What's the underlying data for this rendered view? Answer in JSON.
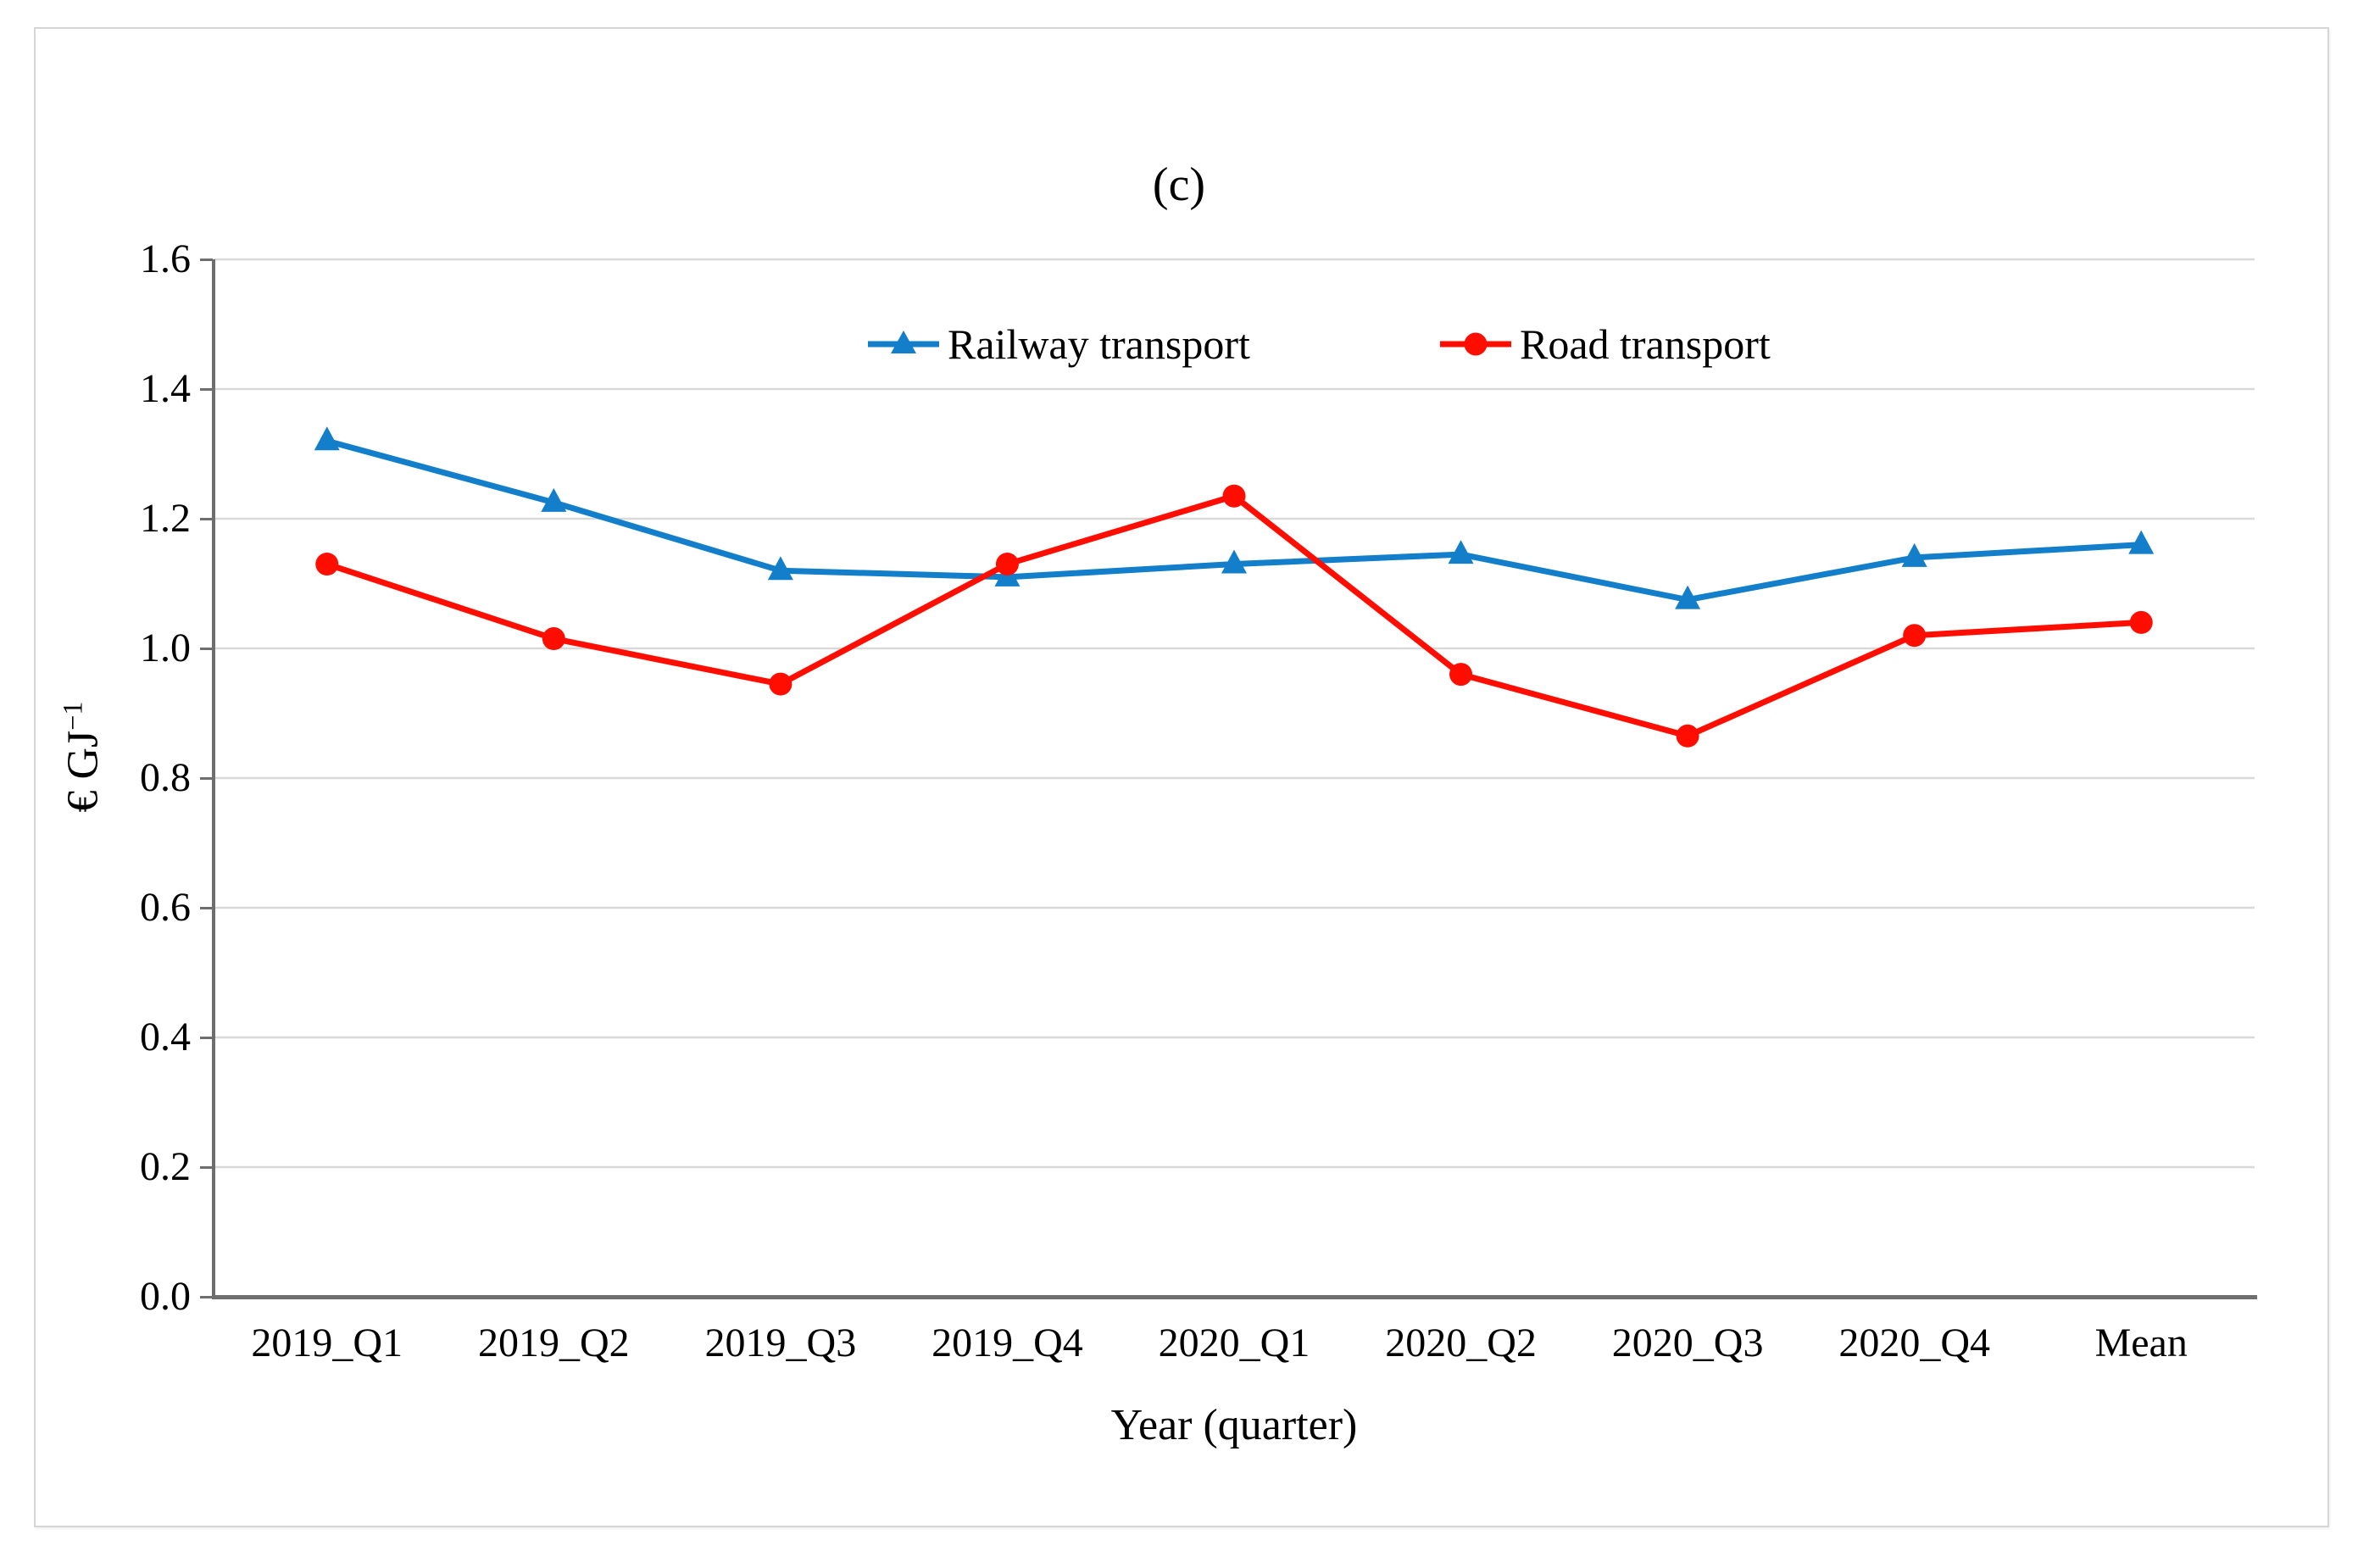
{
  "figure": {
    "panel_label": "(c)"
  },
  "chart_data": {
    "type": "line",
    "title": "(c)",
    "categories": [
      "2019_Q1",
      "2019_Q2",
      "2019_Q3",
      "2019_Q4",
      "2020_Q1",
      "2020_Q2",
      "2020_Q3",
      "2020_Q4",
      "Mean"
    ],
    "series": [
      {
        "name": "Railway transport",
        "marker": "triangle",
        "color": "#137ECA",
        "values": [
          1.32,
          1.225,
          1.12,
          1.11,
          1.13,
          1.145,
          1.075,
          1.14,
          1.16
        ]
      },
      {
        "name": "Road transport",
        "marker": "circle",
        "color": "#FE0D00",
        "values": [
          1.13,
          1.015,
          0.945,
          1.13,
          1.235,
          0.96,
          0.865,
          1.02,
          1.04
        ]
      }
    ],
    "xlabel": "Year (quarter)",
    "ylabel": "€ GJ⁻¹",
    "ylabel_base": "€ GJ",
    "ylabel_superscript": "−1",
    "ylim": [
      0,
      1.6
    ],
    "ytick_labels": [
      "0.0",
      "0.2",
      "0.4",
      "0.6",
      "0.8",
      "1.0",
      "1.2",
      "1.4",
      "1.6"
    ],
    "grid": "horizontal",
    "legend_position": "top-inside",
    "colors": {
      "gridline": "#D9D9D9",
      "axis": "#6E6E6E",
      "text": "#000000"
    }
  }
}
